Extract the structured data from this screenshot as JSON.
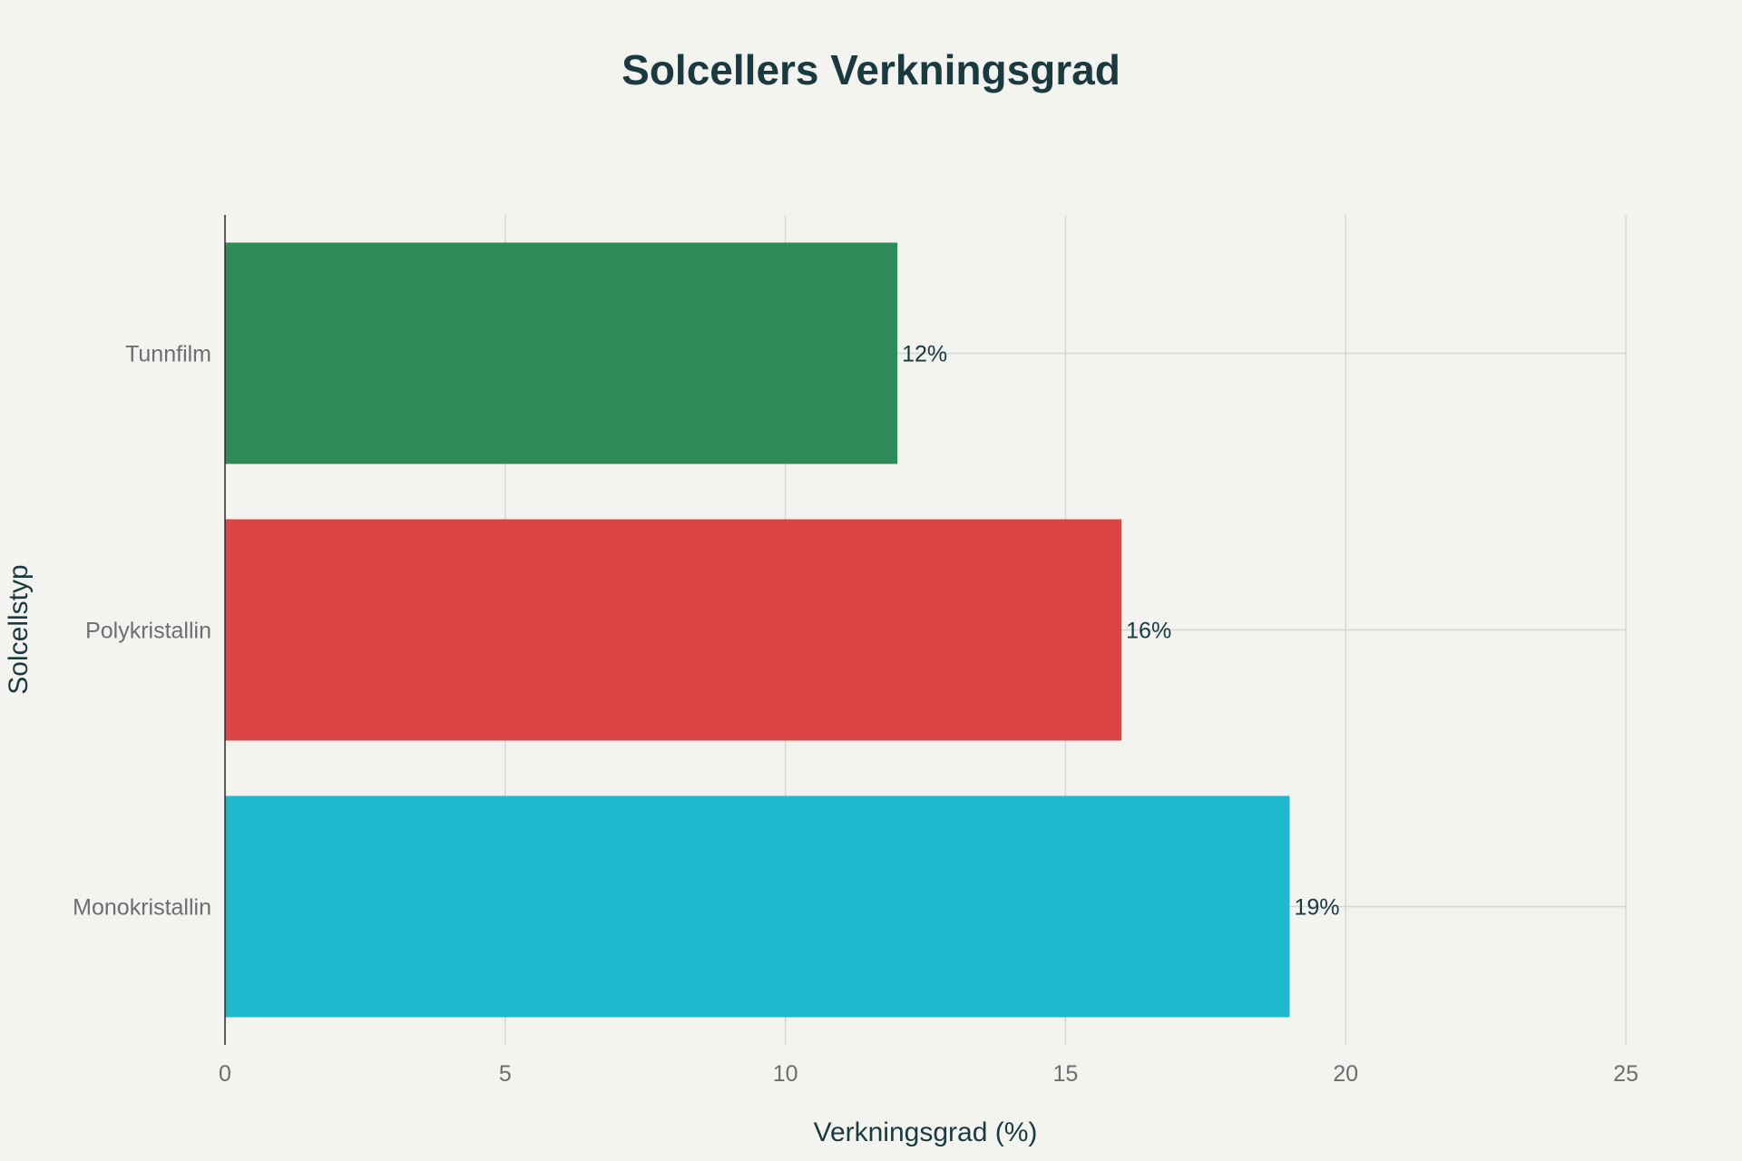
{
  "chart_data": {
    "type": "bar",
    "orientation": "horizontal",
    "title": "Solcellers Verkningsgrad",
    "xlabel": "Verkningsgrad (%)",
    "ylabel": "Solcellstyp",
    "categories": [
      "Tunnfilm",
      "Polykristallin",
      "Monokristallin"
    ],
    "values": [
      12,
      16,
      19
    ],
    "data_labels": [
      "12%",
      "16%",
      "19%"
    ],
    "colors": [
      "#2e8b57",
      "#db4545",
      "#1fb8cd"
    ],
    "xlim": [
      0,
      25
    ],
    "xticks": [
      0,
      5,
      10,
      15,
      20,
      25
    ],
    "grid": true,
    "legend": false
  }
}
